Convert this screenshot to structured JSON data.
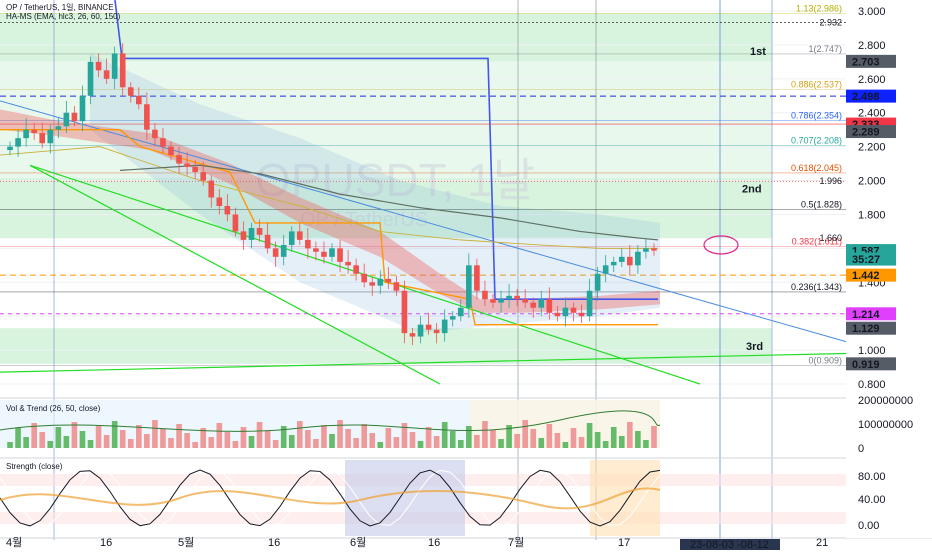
{
  "header": {
    "line1": "OP / TetherUS, 1일, BINANCE",
    "line2": "HA-MS (EMA, hlc3, 26, 60, 150)"
  },
  "watermark": {
    "big": "OPUSDT, 1날",
    "small": "OP / TetherUS"
  },
  "colors": {
    "grid": "#eef0f4",
    "up": "#26a69a",
    "down": "#ef5350",
    "green_zone": "#c8efd0",
    "price_box": "#26a69a",
    "blue_box": "#0d22ff",
    "red_box": "#f23645",
    "orange_box": "#ff9800",
    "magenta_box": "#e040fb",
    "gray_box": "#555c66"
  },
  "price_axis": {
    "labels": [
      "3.000",
      "2.800",
      "2.600",
      "2.400",
      "2.200",
      "2.000",
      "1.800",
      "1.600",
      "1.400",
      "1.200",
      "1.000",
      "0.800"
    ]
  },
  "price_boxes": [
    {
      "text": "2.703",
      "color": "gray_box",
      "value": 2.703
    },
    {
      "text": "2.498",
      "color": "blue_box",
      "value": 2.498
    },
    {
      "text": "2.333",
      "color": "red_box",
      "value": 2.333
    },
    {
      "text": "2.289",
      "color": "gray_box",
      "value": 2.289
    },
    {
      "text": "1.587",
      "color": "price_box",
      "value": 1.587
    },
    {
      "text": "35:27",
      "color": "price_box",
      "value": 1.537
    },
    {
      "text": "1.442",
      "color": "orange_box",
      "value": 1.442
    },
    {
      "text": "1.214",
      "color": "magenta_box",
      "value": 1.214
    },
    {
      "text": "1.129",
      "color": "gray_box",
      "value": 1.129
    },
    {
      "text": "0.919",
      "color": "gray_box",
      "value": 0.919
    }
  ],
  "axis_side_labels": [
    {
      "text": "2.932",
      "value": 2.932
    },
    {
      "text": "1.996",
      "value": 1.996
    },
    {
      "text": "1.660",
      "value": 1.66
    }
  ],
  "fib_levels": [
    {
      "text": "1.13(2.986)",
      "value": 2.986,
      "color": "#b5b000"
    },
    {
      "text": "1(2.747)",
      "value": 2.747,
      "color": "#787b86"
    },
    {
      "text": "0.886(2.537)",
      "value": 2.537,
      "color": "#d4a017"
    },
    {
      "text": "0.786(2.354)",
      "value": 2.354,
      "color": "#2962ff"
    },
    {
      "text": "0.707(2.208)",
      "value": 2.208,
      "color": "#26a69a"
    },
    {
      "text": "0.618(2.045)",
      "value": 2.045,
      "color": "#e65100"
    },
    {
      "text": "0.5(1.828)",
      "value": 1.828,
      "color": "#131722"
    },
    {
      "text": "0.382(1.611)",
      "value": 1.611,
      "color": "#f23645"
    },
    {
      "text": "0.236(1.343)",
      "value": 1.343,
      "color": "#131722"
    },
    {
      "text": "0(0.909)",
      "value": 0.909,
      "color": "#787b86"
    }
  ],
  "zone_labels": [
    "1st",
    "2nd",
    "3rd"
  ],
  "volume_pane": {
    "title": "Vol & Trend (26, 50, close)",
    "labels": [
      "200000000",
      "100000000",
      "0"
    ]
  },
  "strength_pane": {
    "title": "Strength (close)",
    "labels": [
      "80.00",
      "40.00",
      "0.00"
    ]
  },
  "time_axis": {
    "labels": [
      "4월",
      "16",
      "5월",
      "16",
      "6월",
      "16",
      "7월",
      "17",
      "21"
    ],
    "range_label": "23-08-03   -08-12"
  },
  "chart_data": {
    "type": "candlestick",
    "symbol": "OP / TetherUS",
    "interval": "1일",
    "exchange": "BINANCE",
    "ylim": [
      0.8,
      3.05
    ],
    "last_price": 1.587,
    "x": [
      "4월",
      "16",
      "5월",
      "16",
      "6월",
      "16",
      "7월",
      "17"
    ],
    "series": [
      {
        "name": "OP / TetherUS",
        "type": "candlestick"
      },
      {
        "name": "HA-MS (EMA, hlc3, 26, 60, 150)",
        "type": "line"
      },
      {
        "name": "Vol & Trend (26, 50, close)",
        "type": "bar"
      },
      {
        "name": "Strength (close)",
        "type": "line"
      }
    ]
  }
}
